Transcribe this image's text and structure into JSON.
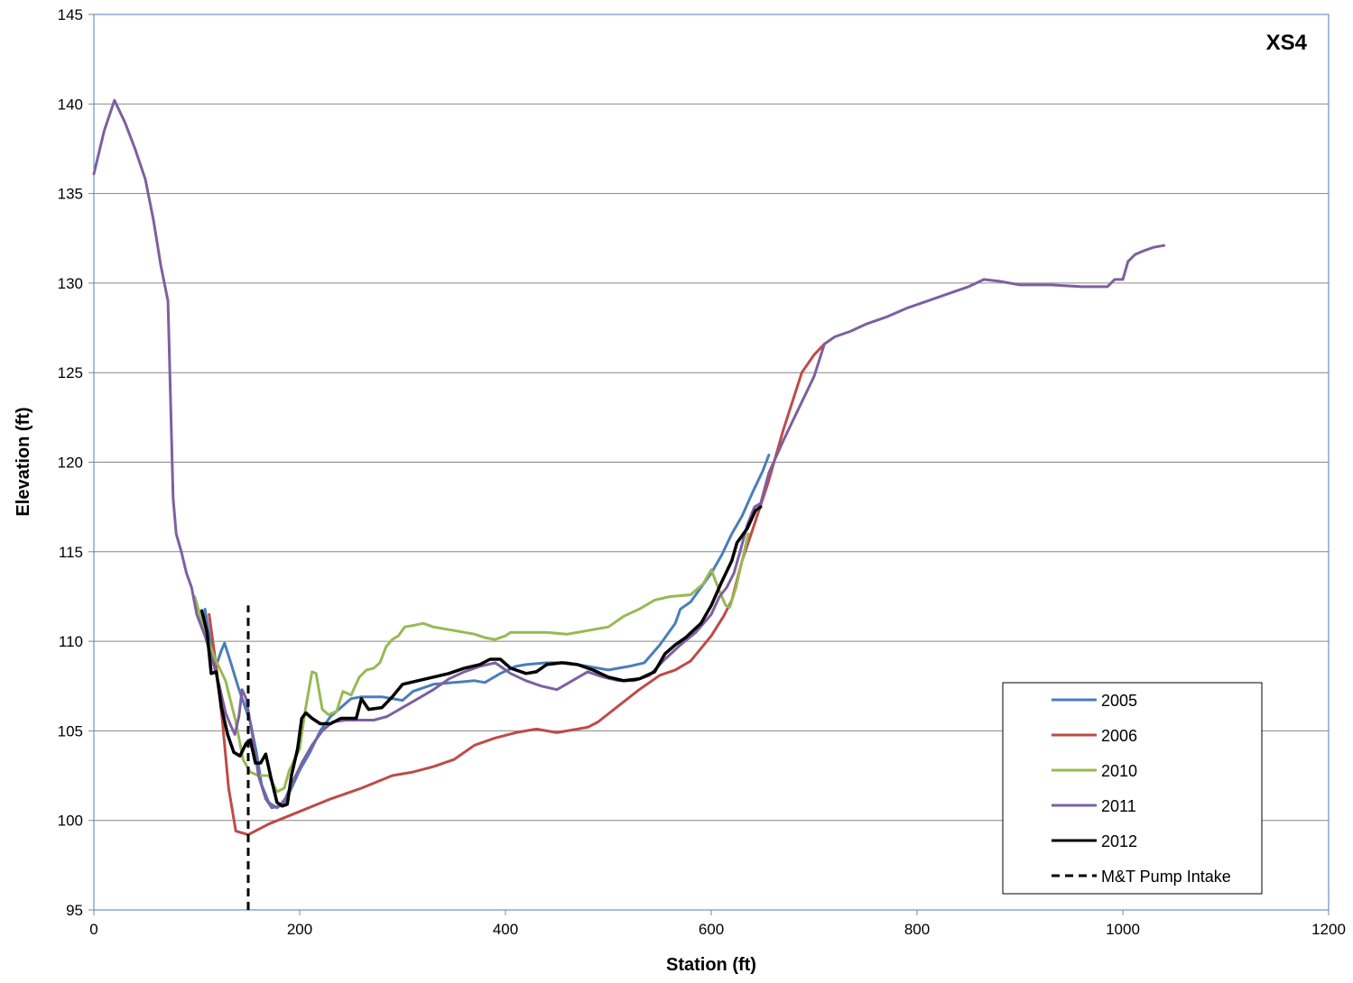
{
  "chart_data": {
    "type": "line",
    "title": "XS4",
    "xlabel": "Station (ft)",
    "ylabel": "Elevation (ft)",
    "xlim": [
      0,
      1200
    ],
    "ylim": [
      95,
      145
    ],
    "xticks": [
      0,
      200,
      400,
      600,
      800,
      1000,
      1200
    ],
    "yticks": [
      95,
      100,
      105,
      110,
      115,
      120,
      125,
      130,
      135,
      140,
      145
    ],
    "grid": "horizontal",
    "legend_position": "bottom-right",
    "series": [
      {
        "name": "2005",
        "color": "#4a7ebb",
        "dashed": false,
        "points": [
          [
            108,
            111.8
          ],
          [
            113,
            110
          ],
          [
            118,
            108.5
          ],
          [
            124,
            109.5
          ],
          [
            127,
            109.9
          ],
          [
            132,
            109
          ],
          [
            140,
            107.5
          ],
          [
            146,
            106.5
          ],
          [
            152,
            105.5
          ],
          [
            158,
            103.8
          ],
          [
            163,
            102
          ],
          [
            170,
            101
          ],
          [
            178,
            100.7
          ],
          [
            185,
            101
          ],
          [
            192,
            101.8
          ],
          [
            200,
            102.8
          ],
          [
            210,
            103.8
          ],
          [
            220,
            105
          ],
          [
            230,
            105.8
          ],
          [
            240,
            106.3
          ],
          [
            250,
            106.8
          ],
          [
            260,
            106.9
          ],
          [
            280,
            106.9
          ],
          [
            300,
            106.7
          ],
          [
            310,
            107.2
          ],
          [
            330,
            107.6
          ],
          [
            350,
            107.7
          ],
          [
            370,
            107.8
          ],
          [
            380,
            107.7
          ],
          [
            395,
            108.2
          ],
          [
            410,
            108.6
          ],
          [
            420,
            108.7
          ],
          [
            440,
            108.8
          ],
          [
            460,
            108.8
          ],
          [
            480,
            108.6
          ],
          [
            500,
            108.4
          ],
          [
            520,
            108.6
          ],
          [
            535,
            108.8
          ],
          [
            550,
            109.8
          ],
          [
            565,
            111
          ],
          [
            570,
            111.8
          ],
          [
            580,
            112.2
          ],
          [
            590,
            113
          ],
          [
            600,
            113.8
          ],
          [
            610,
            114.8
          ],
          [
            620,
            116
          ],
          [
            630,
            117
          ],
          [
            640,
            118.3
          ],
          [
            650,
            119.5
          ],
          [
            656,
            120.4
          ]
        ]
      },
      {
        "name": "2006",
        "color": "#be4b48",
        "dashed": false,
        "points": [
          [
            112,
            111.5
          ],
          [
            118,
            109
          ],
          [
            125,
            105.5
          ],
          [
            131,
            101.8
          ],
          [
            138,
            99.4
          ],
          [
            150,
            99.2
          ],
          [
            170,
            99.8
          ],
          [
            200,
            100.5
          ],
          [
            230,
            101.2
          ],
          [
            260,
            101.8
          ],
          [
            290,
            102.5
          ],
          [
            310,
            102.7
          ],
          [
            330,
            103
          ],
          [
            350,
            103.4
          ],
          [
            370,
            104.2
          ],
          [
            390,
            104.6
          ],
          [
            410,
            104.9
          ],
          [
            430,
            105.1
          ],
          [
            450,
            104.9
          ],
          [
            470,
            105.1
          ],
          [
            480,
            105.2
          ],
          [
            490,
            105.5
          ],
          [
            510,
            106.4
          ],
          [
            530,
            107.3
          ],
          [
            550,
            108.1
          ],
          [
            565,
            108.4
          ],
          [
            580,
            108.9
          ],
          [
            600,
            110.3
          ],
          [
            612,
            111.4
          ],
          [
            620,
            112.3
          ],
          [
            630,
            114.5
          ],
          [
            640,
            116.2
          ],
          [
            655,
            118.8
          ],
          [
            670,
            121.8
          ],
          [
            688,
            125
          ],
          [
            700,
            126
          ],
          [
            710,
            126.6
          ]
        ]
      },
      {
        "name": "2010",
        "color": "#98b954",
        "dashed": false,
        "points": [
          [
            98,
            112.5
          ],
          [
            108,
            110.5
          ],
          [
            118,
            109
          ],
          [
            128,
            107.8
          ],
          [
            138,
            105.5
          ],
          [
            145,
            103.4
          ],
          [
            152,
            102.7
          ],
          [
            160,
            102.5
          ],
          [
            170,
            102.5
          ],
          [
            178,
            101.6
          ],
          [
            185,
            101.8
          ],
          [
            190,
            102.8
          ],
          [
            200,
            104
          ],
          [
            205,
            106
          ],
          [
            212,
            108.3
          ],
          [
            216,
            108.2
          ],
          [
            222,
            106.2
          ],
          [
            228,
            105.9
          ],
          [
            236,
            106.1
          ],
          [
            242,
            107.2
          ],
          [
            250,
            107
          ],
          [
            258,
            108
          ],
          [
            265,
            108.4
          ],
          [
            272,
            108.5
          ],
          [
            278,
            108.8
          ],
          [
            284,
            109.7
          ],
          [
            290,
            110.1
          ],
          [
            296,
            110.3
          ],
          [
            302,
            110.8
          ],
          [
            312,
            110.9
          ],
          [
            320,
            111
          ],
          [
            330,
            110.8
          ],
          [
            340,
            110.7
          ],
          [
            350,
            110.6
          ],
          [
            360,
            110.5
          ],
          [
            370,
            110.4
          ],
          [
            380,
            110.2
          ],
          [
            390,
            110.1
          ],
          [
            400,
            110.3
          ],
          [
            405,
            110.5
          ],
          [
            420,
            110.5
          ],
          [
            440,
            110.5
          ],
          [
            460,
            110.4
          ],
          [
            480,
            110.6
          ],
          [
            500,
            110.8
          ],
          [
            515,
            111.4
          ],
          [
            530,
            111.8
          ],
          [
            545,
            112.3
          ],
          [
            560,
            112.5
          ],
          [
            580,
            112.6
          ],
          [
            592,
            113.2
          ],
          [
            600,
            114
          ],
          [
            608,
            112.8
          ],
          [
            614,
            112
          ],
          [
            618,
            111.9
          ],
          [
            624,
            113
          ],
          [
            630,
            114.5
          ],
          [
            636,
            116
          ]
        ]
      },
      {
        "name": "2011",
        "color": "#7d60a0",
        "dashed": false,
        "points": [
          [
            0,
            136.1
          ],
          [
            10,
            138.5
          ],
          [
            20,
            140.2
          ],
          [
            30,
            139
          ],
          [
            40,
            137.5
          ],
          [
            50,
            135.8
          ],
          [
            58,
            133.5
          ],
          [
            65,
            131
          ],
          [
            72,
            129
          ],
          [
            77,
            118
          ],
          [
            80,
            116
          ],
          [
            85,
            115
          ],
          [
            90,
            113.8
          ],
          [
            95,
            113
          ],
          [
            100,
            111.5
          ],
          [
            108,
            110.3
          ],
          [
            115,
            109
          ],
          [
            122,
            107.5
          ],
          [
            128,
            106
          ],
          [
            133,
            105.3
          ],
          [
            137,
            104.8
          ],
          [
            141,
            105.8
          ],
          [
            144,
            107.3
          ],
          [
            148,
            106.8
          ],
          [
            154,
            104.8
          ],
          [
            160,
            102.5
          ],
          [
            167,
            101.2
          ],
          [
            173,
            100.7
          ],
          [
            180,
            100.8
          ],
          [
            186,
            101.2
          ],
          [
            192,
            102
          ],
          [
            202,
            103.2
          ],
          [
            212,
            104.2
          ],
          [
            222,
            105
          ],
          [
            232,
            105.5
          ],
          [
            245,
            105.6
          ],
          [
            258,
            105.6
          ],
          [
            272,
            105.6
          ],
          [
            285,
            105.8
          ],
          [
            300,
            106.3
          ],
          [
            315,
            106.8
          ],
          [
            330,
            107.3
          ],
          [
            345,
            107.9
          ],
          [
            360,
            108.3
          ],
          [
            375,
            108.6
          ],
          [
            390,
            108.8
          ],
          [
            405,
            108.2
          ],
          [
            420,
            107.8
          ],
          [
            435,
            107.5
          ],
          [
            450,
            107.3
          ],
          [
            465,
            107.8
          ],
          [
            480,
            108.3
          ],
          [
            495,
            108
          ],
          [
            510,
            107.8
          ],
          [
            525,
            107.8
          ],
          [
            540,
            108.1
          ],
          [
            555,
            109
          ],
          [
            570,
            109.8
          ],
          [
            585,
            110.5
          ],
          [
            600,
            111.5
          ],
          [
            608,
            112.5
          ],
          [
            615,
            113
          ],
          [
            622,
            113.8
          ],
          [
            628,
            115
          ],
          [
            635,
            116.5
          ],
          [
            642,
            117.5
          ],
          [
            648,
            117.7
          ],
          [
            656,
            119.4
          ],
          [
            670,
            121.2
          ],
          [
            685,
            123
          ],
          [
            700,
            124.8
          ],
          [
            710,
            126.6
          ],
          [
            720,
            127
          ],
          [
            735,
            127.3
          ],
          [
            750,
            127.7
          ],
          [
            770,
            128.1
          ],
          [
            790,
            128.6
          ],
          [
            810,
            129
          ],
          [
            830,
            129.4
          ],
          [
            850,
            129.8
          ],
          [
            865,
            130.2
          ],
          [
            880,
            130.1
          ],
          [
            900,
            129.9
          ],
          [
            930,
            129.9
          ],
          [
            960,
            129.8
          ],
          [
            985,
            129.8
          ],
          [
            992,
            130.2
          ],
          [
            1000,
            130.2
          ],
          [
            1005,
            131.2
          ],
          [
            1012,
            131.6
          ],
          [
            1020,
            131.8
          ],
          [
            1030,
            132
          ],
          [
            1040,
            132.1
          ]
        ]
      },
      {
        "name": "2012",
        "color": "#000000",
        "dashed": false,
        "points": [
          [
            105,
            111.7
          ],
          [
            110,
            110.5
          ],
          [
            114,
            108.2
          ],
          [
            119,
            108.3
          ],
          [
            124,
            106.3
          ],
          [
            130,
            104.8
          ],
          [
            136,
            103.8
          ],
          [
            142,
            103.6
          ],
          [
            148,
            104.3
          ],
          [
            152,
            104.5
          ],
          [
            157,
            103.2
          ],
          [
            162,
            103.2
          ],
          [
            167,
            103.7
          ],
          [
            172,
            102.4
          ],
          [
            178,
            101
          ],
          [
            183,
            100.8
          ],
          [
            188,
            100.9
          ],
          [
            192,
            102.5
          ],
          [
            198,
            104
          ],
          [
            202,
            105.7
          ],
          [
            206,
            106
          ],
          [
            212,
            105.7
          ],
          [
            220,
            105.4
          ],
          [
            230,
            105.4
          ],
          [
            240,
            105.7
          ],
          [
            255,
            105.7
          ],
          [
            260,
            106.8
          ],
          [
            267,
            106.2
          ],
          [
            280,
            106.3
          ],
          [
            290,
            106.9
          ],
          [
            300,
            107.6
          ],
          [
            315,
            107.8
          ],
          [
            330,
            108
          ],
          [
            345,
            108.2
          ],
          [
            360,
            108.5
          ],
          [
            375,
            108.7
          ],
          [
            385,
            109
          ],
          [
            395,
            109
          ],
          [
            405,
            108.5
          ],
          [
            420,
            108.2
          ],
          [
            430,
            108.3
          ],
          [
            440,
            108.7
          ],
          [
            455,
            108.8
          ],
          [
            470,
            108.7
          ],
          [
            485,
            108.4
          ],
          [
            500,
            108
          ],
          [
            515,
            107.8
          ],
          [
            530,
            107.9
          ],
          [
            545,
            108.3
          ],
          [
            555,
            109.3
          ],
          [
            565,
            109.8
          ],
          [
            575,
            110.2
          ],
          [
            590,
            111
          ],
          [
            600,
            112
          ],
          [
            610,
            113.3
          ],
          [
            620,
            114.5
          ],
          [
            625,
            115.5
          ],
          [
            635,
            116.3
          ],
          [
            643,
            117.3
          ],
          [
            648,
            117.5
          ]
        ]
      },
      {
        "name": "M&T Pump Intake",
        "color": "#000000",
        "dashed": true,
        "points": [
          [
            150,
            95
          ],
          [
            150,
            112
          ]
        ]
      }
    ]
  }
}
